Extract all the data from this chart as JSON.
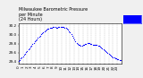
{
  "title": "Milwaukee Barometric Pressure\nper Minute\n(24 Hours)",
  "bg_color": "#f0f0f0",
  "plot_bg_color": "#ffffff",
  "dot_color": "#0000ff",
  "legend_color": "#0000ff",
  "dot_size": 0.8,
  "ylim": [
    29.35,
    30.25
  ],
  "xlim": [
    0,
    24
  ],
  "yticks": [
    29.4,
    29.6,
    29.8,
    30.0,
    30.2
  ],
  "xticks": [
    0,
    1,
    2,
    3,
    4,
    5,
    6,
    7,
    8,
    9,
    10,
    11,
    12,
    13,
    14,
    15,
    16,
    17,
    18,
    19,
    20,
    21,
    22,
    23
  ],
  "pressure_data": [
    [
      0.0,
      29.42
    ],
    [
      0.25,
      29.44
    ],
    [
      0.5,
      29.47
    ],
    [
      0.75,
      29.5
    ],
    [
      1.0,
      29.52
    ],
    [
      1.25,
      29.55
    ],
    [
      1.5,
      29.58
    ],
    [
      1.75,
      29.61
    ],
    [
      2.0,
      29.63
    ],
    [
      2.25,
      29.67
    ],
    [
      2.5,
      29.7
    ],
    [
      2.75,
      29.73
    ],
    [
      3.0,
      29.76
    ],
    [
      3.25,
      29.79
    ],
    [
      3.5,
      29.82
    ],
    [
      3.75,
      29.85
    ],
    [
      4.0,
      29.87
    ],
    [
      4.25,
      29.9
    ],
    [
      4.5,
      29.93
    ],
    [
      4.75,
      29.96
    ],
    [
      5.0,
      29.98
    ],
    [
      5.25,
      30.01
    ],
    [
      5.5,
      30.04
    ],
    [
      5.75,
      30.06
    ],
    [
      6.0,
      30.08
    ],
    [
      6.25,
      30.1
    ],
    [
      6.5,
      30.12
    ],
    [
      6.75,
      30.13
    ],
    [
      7.0,
      30.14
    ],
    [
      7.25,
      30.15
    ],
    [
      7.5,
      30.16
    ],
    [
      7.75,
      30.16
    ],
    [
      8.0,
      30.17
    ],
    [
      8.25,
      30.17
    ],
    [
      8.5,
      30.17
    ],
    [
      8.75,
      30.16
    ],
    [
      9.0,
      30.16
    ],
    [
      9.25,
      30.17
    ],
    [
      9.5,
      30.17
    ],
    [
      9.75,
      30.17
    ],
    [
      10.0,
      30.18
    ],
    [
      10.25,
      30.18
    ],
    [
      10.5,
      30.17
    ],
    [
      10.75,
      30.16
    ],
    [
      11.0,
      30.15
    ],
    [
      11.25,
      30.13
    ],
    [
      11.5,
      30.11
    ],
    [
      11.75,
      30.08
    ],
    [
      12.0,
      30.05
    ],
    [
      12.25,
      30.01
    ],
    [
      12.5,
      29.97
    ],
    [
      12.75,
      29.93
    ],
    [
      13.0,
      29.89
    ],
    [
      13.25,
      29.85
    ],
    [
      13.5,
      29.82
    ],
    [
      13.75,
      29.8
    ],
    [
      14.0,
      29.78
    ],
    [
      14.25,
      29.77
    ],
    [
      14.5,
      29.76
    ],
    [
      14.75,
      29.76
    ],
    [
      15.0,
      29.77
    ],
    [
      15.25,
      29.78
    ],
    [
      15.5,
      29.79
    ],
    [
      15.75,
      29.8
    ],
    [
      16.0,
      29.81
    ],
    [
      16.25,
      29.82
    ],
    [
      16.5,
      29.81
    ],
    [
      16.75,
      29.8
    ],
    [
      17.0,
      29.79
    ],
    [
      17.25,
      29.78
    ],
    [
      17.5,
      29.77
    ],
    [
      17.75,
      29.77
    ],
    [
      18.0,
      29.77
    ],
    [
      18.25,
      29.77
    ],
    [
      18.5,
      29.76
    ],
    [
      18.75,
      29.75
    ],
    [
      19.0,
      29.74
    ],
    [
      19.25,
      29.72
    ],
    [
      19.5,
      29.7
    ],
    [
      19.75,
      29.68
    ],
    [
      20.0,
      29.66
    ],
    [
      20.25,
      29.64
    ],
    [
      20.5,
      29.62
    ],
    [
      20.75,
      29.6
    ],
    [
      21.0,
      29.58
    ],
    [
      21.25,
      29.56
    ],
    [
      21.5,
      29.54
    ],
    [
      21.75,
      29.52
    ],
    [
      22.0,
      29.5
    ],
    [
      22.25,
      29.49
    ],
    [
      22.5,
      29.48
    ],
    [
      22.75,
      29.47
    ],
    [
      23.0,
      29.46
    ],
    [
      23.25,
      29.45
    ],
    [
      23.5,
      29.44
    ],
    [
      23.75,
      29.43
    ]
  ],
  "title_fontsize": 3.5,
  "tick_fontsize": 3.0,
  "grid_color": "#bbbbbb",
  "grid_style": "--"
}
